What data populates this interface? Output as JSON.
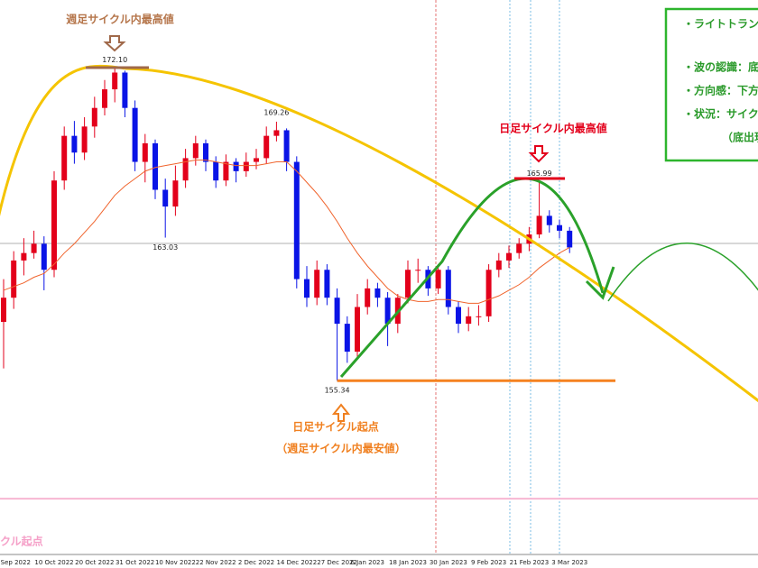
{
  "chart_data": {
    "type": "candlestick",
    "categories": [
      null,
      "l Sep 2022",
      null,
      null,
      null,
      "10 Oct 2022",
      null,
      null,
      null,
      "20 Oct 2022",
      null,
      null,
      null,
      "31 Oct 2022",
      null,
      null,
      null,
      "10 Nov 2022",
      null,
      null,
      null,
      "22 Nov 2022",
      null,
      null,
      null,
      "2 Dec 2022",
      null,
      null,
      null,
      "14 Dec 2022",
      null,
      null,
      null,
      "27 Dec 2022",
      null,
      null,
      "6 Jan 2023",
      null,
      null,
      null,
      "18 Jan 2023",
      null,
      null,
      null,
      "30 Jan 2023",
      null,
      null,
      null,
      "9 Feb 2023",
      null,
      null,
      null,
      "21 Feb 2023",
      null,
      null,
      null,
      "3 Mar 2023"
    ],
    "open": [
      158.5,
      159.8,
      161.8,
      162.2,
      162.7,
      161.3,
      166.1,
      168.5,
      167.6,
      169.0,
      170.0,
      171.0,
      171.9,
      170.0,
      167.1,
      168.1,
      165.6,
      164.7,
      166.1,
      167.3,
      168.1,
      167.1,
      166.1,
      167.1,
      166.6,
      167.1,
      167.3,
      168.5,
      168.8,
      167.1,
      160.8,
      159.8,
      161.3,
      159.8,
      158.4,
      156.9,
      159.3,
      160.3,
      159.8,
      158.4,
      159.8,
      161.3,
      161.3,
      160.3,
      161.3,
      159.3,
      158.4,
      158.8,
      158.8,
      161.3,
      161.8,
      162.2,
      162.7,
      163.2,
      164.2,
      163.7,
      163.4
    ],
    "high": [
      160.8,
      162.3,
      163.0,
      163.4,
      163.1,
      166.6,
      169.0,
      169.3,
      169.5,
      170.6,
      171.5,
      172.1,
      172.0,
      170.4,
      168.6,
      168.3,
      166.2,
      166.9,
      167.8,
      168.5,
      168.3,
      167.4,
      167.5,
      167.3,
      167.6,
      167.8,
      169.0,
      169.26,
      168.9,
      167.4,
      161.5,
      161.8,
      161.6,
      160.3,
      158.8,
      160.0,
      160.8,
      160.6,
      160.1,
      160.0,
      161.8,
      161.9,
      161.5,
      161.6,
      161.5,
      159.6,
      159.3,
      159.4,
      161.6,
      162.2,
      162.6,
      163.0,
      163.6,
      165.99,
      164.5,
      164.0,
      163.6
    ],
    "low": [
      156.0,
      159.2,
      161.0,
      161.9,
      160.2,
      160.9,
      165.6,
      167.0,
      167.2,
      168.4,
      169.6,
      170.3,
      169.5,
      166.6,
      166.0,
      165.1,
      163.03,
      164.2,
      165.7,
      166.9,
      166.6,
      165.7,
      165.8,
      166.0,
      166.3,
      166.7,
      167.0,
      168.2,
      166.6,
      160.3,
      159.3,
      159.4,
      159.4,
      155.34,
      156.3,
      156.5,
      158.9,
      159.3,
      157.2,
      157.9,
      159.5,
      160.6,
      159.9,
      160.0,
      158.9,
      157.9,
      158.0,
      158.3,
      158.5,
      160.9,
      161.4,
      161.9,
      162.3,
      163.0,
      163.3,
      163.0,
      162.2
    ],
    "close": [
      159.8,
      161.8,
      162.2,
      162.7,
      161.3,
      166.1,
      168.5,
      167.6,
      169.0,
      170.0,
      171.0,
      171.9,
      170.0,
      167.1,
      168.1,
      165.6,
      164.7,
      166.1,
      167.3,
      168.1,
      167.1,
      166.1,
      167.1,
      166.6,
      167.1,
      167.3,
      168.5,
      168.8,
      167.1,
      160.8,
      159.8,
      161.3,
      159.8,
      158.4,
      156.9,
      159.3,
      160.3,
      159.8,
      158.4,
      159.8,
      161.3,
      161.3,
      160.3,
      161.3,
      159.3,
      158.4,
      158.8,
      158.8,
      161.3,
      161.8,
      162.2,
      162.7,
      163.2,
      164.2,
      163.7,
      163.4,
      162.5
    ],
    "high_labels": [
      null,
      null,
      null,
      null,
      null,
      null,
      null,
      null,
      null,
      null,
      null,
      "172.10",
      null,
      null,
      null,
      null,
      null,
      null,
      null,
      null,
      null,
      null,
      null,
      null,
      null,
      null,
      null,
      "169.26",
      null,
      null,
      null,
      null,
      null,
      null,
      null,
      null,
      null,
      null,
      null,
      null,
      null,
      null,
      null,
      null,
      null,
      null,
      null,
      null,
      null,
      null,
      null,
      null,
      null,
      "165.99",
      null,
      null,
      null
    ],
    "low_labels": [
      null,
      null,
      null,
      null,
      null,
      null,
      null,
      null,
      null,
      null,
      null,
      null,
      null,
      null,
      null,
      null,
      "163.03",
      null,
      null,
      null,
      null,
      null,
      null,
      null,
      null,
      null,
      null,
      null,
      null,
      null,
      null,
      null,
      null,
      "155.34",
      null,
      null,
      null,
      null,
      null,
      null,
      null,
      null,
      null,
      null,
      null,
      null,
      null,
      null,
      null,
      null,
      null,
      null,
      null,
      null,
      null,
      null,
      null
    ],
    "ma": [
      160.2,
      160.4,
      160.6,
      160.9,
      161.1,
      161.6,
      162.2,
      162.7,
      163.3,
      163.9,
      164.6,
      165.3,
      165.8,
      166.2,
      166.6,
      166.8,
      166.9,
      167.0,
      167.1,
      167.2,
      167.2,
      167.1,
      167.0,
      166.9,
      166.9,
      166.9,
      167.0,
      167.1,
      167.1,
      166.6,
      166.0,
      165.4,
      164.7,
      163.9,
      163.0,
      162.2,
      161.5,
      160.9,
      160.3,
      159.9,
      159.7,
      159.6,
      159.6,
      159.7,
      159.7,
      159.6,
      159.5,
      159.5,
      159.7,
      159.9,
      160.2,
      160.5,
      160.9,
      161.4,
      161.8,
      162.2,
      162.5
    ],
    "up_color": "#e3001b",
    "down_color": "#0a14e6",
    "ma_color": "#f0642d",
    "price_line": 162.72,
    "pink_line": 149.0,
    "ylim": [
      146,
      175.8
    ],
    "annotations": [
      "週足サイクル内最高値",
      "日足サイクル内最高値",
      "日足サイクル起点",
      "（週足サイクル内最安値）",
      "クル起点"
    ],
    "note_box": [
      "・ライトトラン",
      "・波の認識：底",
      "・方向感：下方",
      "・状況：サイク",
      "（底出現"
    ]
  }
}
